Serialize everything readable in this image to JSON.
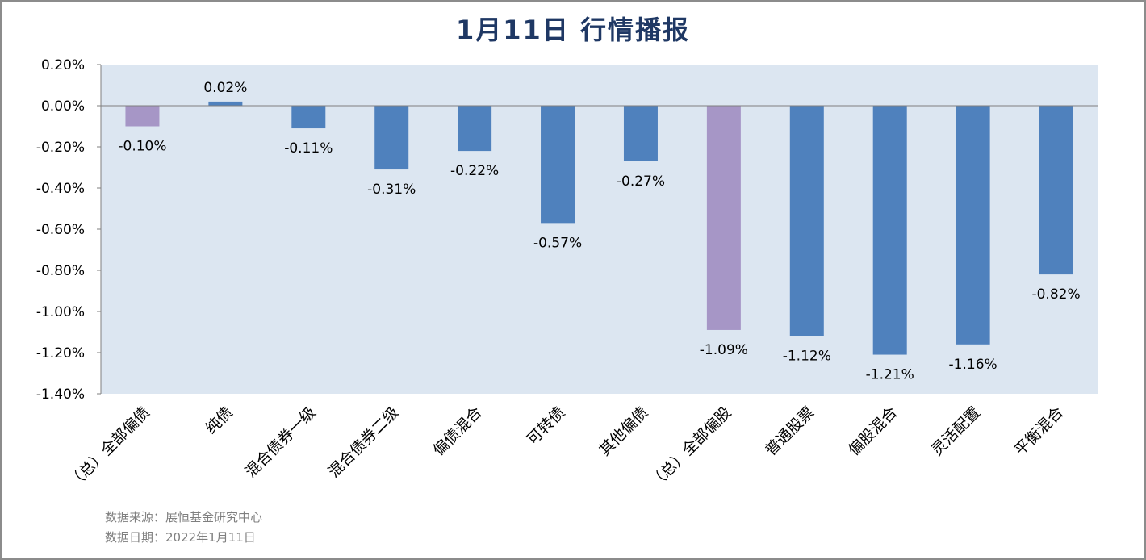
{
  "chart_data": {
    "type": "bar",
    "title": "1月11日  行情播报",
    "categories": [
      "（总）全部偏债",
      "纯债",
      "混合债券一级",
      "混合债券二级",
      "偏债混合",
      "可转债",
      "其他偏债",
      "（总）全部偏股",
      "普通股票",
      "偏股混合",
      "灵活配置",
      "平衡混合"
    ],
    "values": [
      -0.1,
      0.02,
      -0.11,
      -0.31,
      -0.22,
      -0.57,
      -0.27,
      -1.09,
      -1.12,
      -1.21,
      -1.16,
      -0.82
    ],
    "value_labels": [
      "-0.10%",
      "0.02%",
      "-0.11%",
      "-0.31%",
      "-0.22%",
      "-0.57%",
      "-0.27%",
      "-1.09%",
      "-1.12%",
      "-1.21%",
      "-1.16%",
      "-0.82%"
    ],
    "highlight": [
      true,
      false,
      false,
      false,
      false,
      false,
      false,
      true,
      false,
      false,
      false,
      false
    ],
    "ylim": [
      -1.4,
      0.2
    ],
    "yticks": [
      0.2,
      0.0,
      -0.2,
      -0.4,
      -0.6,
      -0.8,
      -1.0,
      -1.2,
      -1.4
    ],
    "ytick_labels": [
      "0.20%",
      "0.00%",
      "-0.20%",
      "-0.40%",
      "-0.60%",
      "-0.80%",
      "-1.00%",
      "-1.20%",
      "-1.40%"
    ],
    "xlabel": "",
    "ylabel": "",
    "grid": false,
    "legend": "none",
    "colors": {
      "bar": "#4f81bd",
      "highlight_bar": "#a696c6",
      "plot_background": "#dce6f1",
      "title": "#1f3864",
      "text": "#000000",
      "axis": "#7f7f7f"
    }
  },
  "footer": {
    "source": "数据来源：展恒基金研究中心",
    "date": "数据日期：2022年1月11日"
  }
}
